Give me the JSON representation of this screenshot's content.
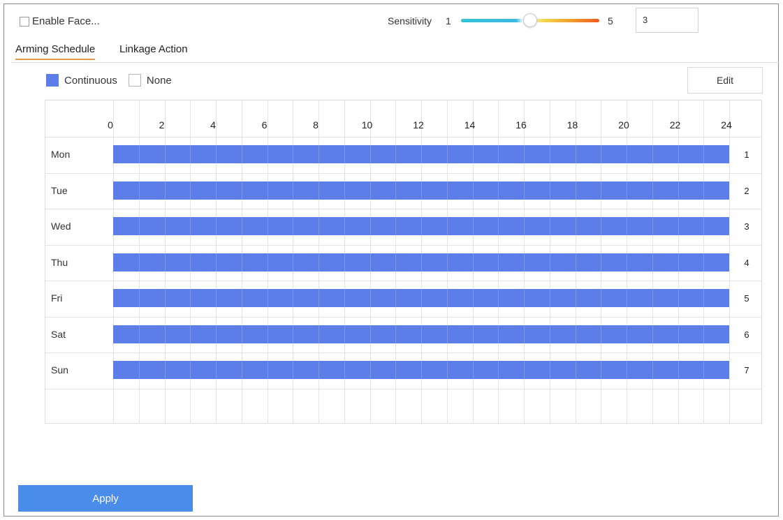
{
  "header": {
    "enable_label": "Enable Face...",
    "sensitivity_label": "Sensitivity",
    "sensitivity_min": "1",
    "sensitivity_max": "5",
    "sensitivity_value": "3"
  },
  "tabs": [
    {
      "label": "Arming Schedule",
      "active": true
    },
    {
      "label": "Linkage Action",
      "active": false
    }
  ],
  "legend": {
    "continuous_label": "Continuous",
    "none_label": "None",
    "continuous_color": "#5b7ee8"
  },
  "toolbar": {
    "edit_label": "Edit"
  },
  "schedule": {
    "hour_labels": [
      "0",
      "2",
      "4",
      "6",
      "8",
      "10",
      "12",
      "14",
      "16",
      "18",
      "20",
      "22",
      "24"
    ],
    "days": [
      {
        "label": "Mon",
        "number": "1",
        "start_hour": 0,
        "end_hour": 24
      },
      {
        "label": "Tue",
        "number": "2",
        "start_hour": 0,
        "end_hour": 24
      },
      {
        "label": "Wed",
        "number": "3",
        "start_hour": 0,
        "end_hour": 24
      },
      {
        "label": "Thu",
        "number": "4",
        "start_hour": 0,
        "end_hour": 24
      },
      {
        "label": "Fri",
        "number": "5",
        "start_hour": 0,
        "end_hour": 24
      },
      {
        "label": "Sat",
        "number": "6",
        "start_hour": 0,
        "end_hour": 24
      },
      {
        "label": "Sun",
        "number": "7",
        "start_hour": 0,
        "end_hour": 24
      }
    ]
  },
  "footer": {
    "apply_label": "Apply"
  },
  "colors": {
    "accent": "#4a8cea",
    "schedule_bar": "#5b7ee8",
    "tab_underline": "#e09a4a"
  }
}
